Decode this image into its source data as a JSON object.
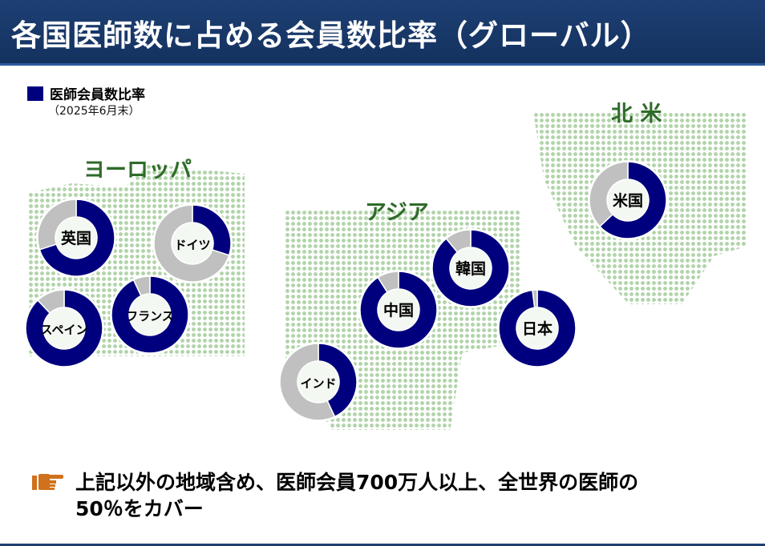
{
  "title": "各国医師数に占める会員数比率（グローバル）",
  "legend": {
    "label": "医師会員数比率",
    "date": "（2025年6月末）",
    "color": "#00007f"
  },
  "regions": {
    "europe": "ヨーロッパ",
    "asia": "アジア",
    "north_america": "北 米"
  },
  "chart_data": {
    "type": "donut",
    "series_name": "医師会員数比率",
    "colors": {
      "member": "#00007f",
      "rest": "#c0c0c0"
    },
    "countries": [
      {
        "name": "英国",
        "member_pct": 70
      },
      {
        "name": "ドイツ",
        "member_pct": 30
      },
      {
        "name": "スペイン",
        "member_pct": 88
      },
      {
        "name": "フランス",
        "member_pct": 93
      },
      {
        "name": "中国",
        "member_pct": 91
      },
      {
        "name": "韓国",
        "member_pct": 89
      },
      {
        "name": "日本",
        "member_pct": 98
      },
      {
        "name": "インド",
        "member_pct": 43
      },
      {
        "name": "米国",
        "member_pct": 63
      }
    ]
  },
  "note": {
    "icon": "pointing-hand-icon",
    "line1": "上記以外の地域含め、医師会員700万人以上、全世界の医師の",
    "line2": "50％をカバー"
  }
}
